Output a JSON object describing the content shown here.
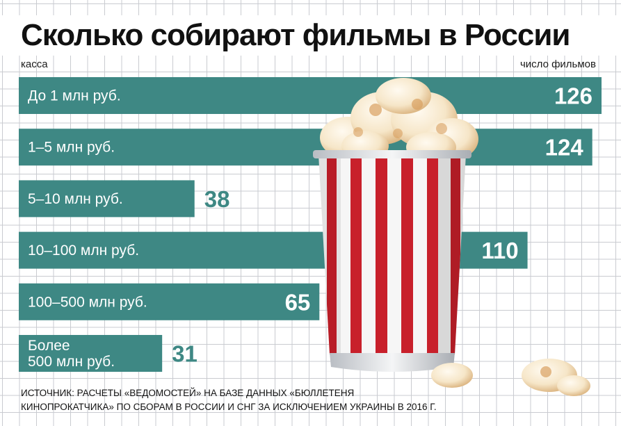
{
  "title": "Сколько собирают фильмы в России",
  "column_labels": {
    "left": "касса",
    "right": "число фильмов"
  },
  "colors": {
    "bar": "#3e8884",
    "value_on_bar": "#ffffff",
    "value_outside": "#3e8884"
  },
  "chart_data": {
    "type": "bar",
    "orientation": "horizontal",
    "categories": [
      "До 1 млн руб.",
      "1–5 млн руб.",
      "5–10 млн руб.",
      "10–100 млн руб.",
      "100–500 млн руб.",
      "Более 500 млн руб."
    ],
    "category_lines": [
      [
        "До 1 млн руб."
      ],
      [
        "1–5 млн руб."
      ],
      [
        "5–10 млн руб."
      ],
      [
        "10–100 млн руб."
      ],
      [
        "100–500 млн руб."
      ],
      [
        "Более",
        "500 млн руб."
      ]
    ],
    "values": [
      126,
      124,
      38,
      110,
      65,
      31
    ],
    "value_labels": [
      "126",
      "124",
      "38",
      "110",
      "65",
      "31"
    ],
    "title": "Сколько собирают фильмы в России",
    "xlabel": "число фильмов",
    "ylabel": "касса",
    "xlim": [
      0,
      126
    ],
    "grid": false,
    "legend": "none"
  },
  "source": "ИСТОЧНИК: РАСЧЕТЫ «ВЕДОМОСТЕЙ» НА БАЗЕ ДАННЫХ «БЮЛЛЕТЕНЯ КИНОПРОКАТЧИКА» ПО СБОРАМ В РОССИИ И СНГ ЗА ИСКЛЮЧЕНИЕМ УКРАИНЫ В 2016 Г."
}
